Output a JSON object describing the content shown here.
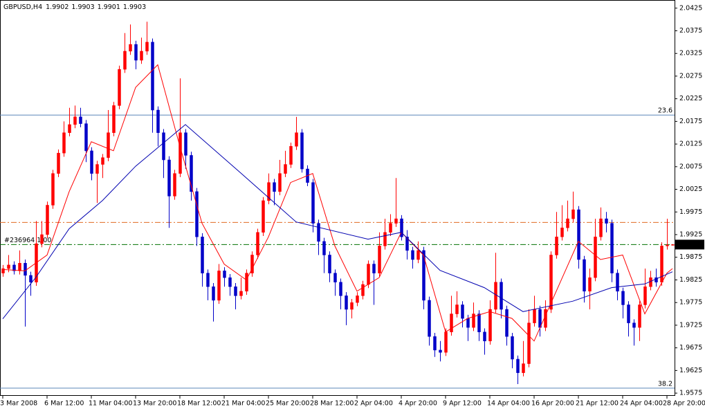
{
  "chart_data": {
    "type": "candlestick",
    "symbol": "GBPUSD,H4",
    "ylim": [
      1.9569,
      2.0443
    ],
    "xlim": [
      -0.5,
      121.375
    ],
    "yticks": [
      1.9575,
      1.9625,
      1.9675,
      1.9725,
      1.9775,
      1.9825,
      1.9875,
      1.9925,
      1.9975,
      2.0025,
      2.0075,
      2.0125,
      2.0175,
      2.0225,
      2.0275,
      2.0325,
      2.0375,
      2.0425
    ],
    "xticks": [
      {
        "value": 0,
        "label": "3 Mar 2008"
      },
      {
        "value": 8,
        "label": "6 Mar 12:00"
      },
      {
        "value": 16,
        "label": "11 Mar 04:00"
      },
      {
        "value": 24,
        "label": "13 Mar 20:00"
      },
      {
        "value": 32,
        "label": "18 Mar 12:00"
      },
      {
        "value": 40,
        "label": "21 Mar 04:00"
      },
      {
        "value": 48,
        "label": "25 Mar 20:00"
      },
      {
        "value": 56,
        "label": "28 Mar 12:00"
      },
      {
        "value": 64,
        "label": "2 Apr 04:00"
      },
      {
        "value": 72,
        "label": "4 Apr 20:00"
      },
      {
        "value": 80,
        "label": "9 Apr 12:00"
      },
      {
        "value": 88,
        "label": "14 Apr 04:00"
      },
      {
        "value": 96,
        "label": "16 Apr 20:00"
      },
      {
        "value": 104,
        "label": "21 Apr 12:00"
      },
      {
        "value": 112,
        "label": "24 Apr 04:00"
      },
      {
        "value": 120,
        "label": "28 Apr 20:00"
      }
    ],
    "up_color": "#ff0000",
    "down_color": "#0000c8",
    "open": [
      1.984,
      1.985,
      1.9858,
      1.9845,
      1.9862,
      1.9835,
      1.982,
      1.9905,
      1.9925,
      1.999,
      2.006,
      2.0105,
      2.015,
      2.0168,
      2.0185,
      2.017,
      2.011,
      2.006,
      2.008,
      2.0095,
      2.015,
      2.021,
      2.029,
      2.033,
      2.0345,
      2.031,
      2.033,
      2.035,
      2.02,
      2.015,
      2.009,
      2.001,
      2.006,
      2.015,
      2.01,
      2.002,
      1.992,
      1.984,
      1.981,
      1.978,
      1.9845,
      1.983,
      1.981,
      1.979,
      1.98,
      1.984,
      1.988,
      1.993,
      2.0,
      2.004,
      2.002,
      2.006,
      2.008,
      2.012,
      2.015,
      2.007,
      2.004,
      1.995,
      1.991,
      1.988,
      1.984,
      1.982,
      1.979,
      1.976,
      1.9775,
      1.979,
      1.9815,
      1.986,
      1.984,
      1.99,
      1.993,
      1.995,
      1.996,
      1.992,
      1.989,
      1.987,
      1.989,
      1.978,
      1.97,
      1.967,
      1.9665,
      1.971,
      1.975,
      1.977,
      1.974,
      1.972,
      1.975,
      1.971,
      1.969,
      1.976,
      1.982,
      1.976,
      1.97,
      1.965,
      1.962,
      1.964,
      1.973,
      1.976,
      1.972,
      1.976,
      1.988,
      1.992,
      1.994,
      1.996,
      1.998,
      1.987,
      1.98,
      1.983,
      1.992,
      1.996,
      1.995,
      1.984,
      1.98,
      1.977,
      1.973,
      1.972,
      1.977,
      1.981,
      1.983,
      1.982,
      1.99,
      1.9902
    ],
    "high": [
      1.9858,
      1.988,
      1.9866,
      1.989,
      1.987,
      1.9843,
      1.9955,
      1.9955,
      1.9998,
      2.0068,
      2.0113,
      2.0175,
      2.0205,
      2.021,
      2.0205,
      2.0178,
      2.0118,
      2.0088,
      2.0103,
      2.02,
      2.0218,
      2.0298,
      2.037,
      2.0389,
      2.0353,
      2.036,
      2.0395,
      2.0358,
      2.0208,
      2.0158,
      2.0098,
      2.0068,
      2.027,
      2.0158,
      2.0108,
      2.0028,
      1.9928,
      1.9848,
      1.9818,
      1.986,
      1.9853,
      1.9838,
      1.9818,
      1.983,
      1.9848,
      1.9888,
      1.9938,
      2.0008,
      2.006,
      2.0048,
      2.009,
      2.011,
      2.0128,
      2.0185,
      2.0158,
      2.0078,
      2.0048,
      1.9958,
      1.9918,
      1.9888,
      1.9848,
      1.9828,
      1.9798,
      1.9783,
      1.9798,
      1.9823,
      1.9868,
      1.9868,
      1.993,
      1.996,
      1.997,
      2.005,
      1.9968,
      1.9935,
      1.9898,
      1.991,
      1.9898,
      1.9788,
      1.9708,
      1.969,
      1.9718,
      1.979,
      1.98,
      1.9778,
      1.9748,
      1.9775,
      1.9758,
      1.9718,
      1.978,
      1.9885,
      1.9828,
      1.9768,
      1.9708,
      1.9658,
      1.969,
      1.976,
      1.979,
      1.9768,
      1.978,
      1.9888,
      1.9975,
      1.999,
      2.0,
      2.002,
      1.9988,
      1.9878,
      1.985,
      1.996,
      1.9985,
      1.9975,
      1.9958,
      1.9848,
      1.9808,
      1.9778,
      1.9738,
      1.9778,
      1.985,
      1.9845,
      1.985,
      1.9908,
      1.996,
      1.9903
    ],
    "low": [
      1.9832,
      1.9842,
      1.9837,
      1.9837,
      1.9722,
      1.979,
      1.9812,
      1.9897,
      1.9917,
      1.9982,
      2.0052,
      2.0097,
      2.0142,
      2.016,
      2.0162,
      2.0085,
      2.0045,
      1.9995,
      2.005,
      2.0087,
      2.0142,
      2.0202,
      2.0282,
      2.0322,
      2.029,
      2.0302,
      2.0322,
      2.015,
      2.012,
      2.005,
      1.994,
      2.0002,
      2.0052,
      2.007,
      2.0,
      1.99,
      1.981,
      1.978,
      1.9733,
      1.9772,
      1.981,
      1.979,
      1.976,
      1.9782,
      1.9792,
      1.9832,
      1.9872,
      1.9922,
      1.9992,
      1.999,
      2.0012,
      2.0052,
      2.0072,
      2.0112,
      2.0062,
      2.0032,
      1.993,
      1.988,
      1.984,
      1.982,
      1.979,
      1.976,
      1.9725,
      1.974,
      1.9767,
      1.9782,
      1.9807,
      1.977,
      1.9832,
      1.9892,
      1.9922,
      1.9942,
      1.9912,
      1.987,
      1.985,
      1.9862,
      1.976,
      1.968,
      1.9655,
      1.9645,
      1.9657,
      1.9702,
      1.9742,
      1.972,
      1.969,
      1.9712,
      1.969,
      1.966,
      1.9682,
      1.9752,
      1.974,
      1.968,
      1.963,
      1.9595,
      1.9612,
      1.9632,
      1.9722,
      1.97,
      1.9712,
      1.9752,
      1.9872,
      1.9912,
      1.9932,
      1.9952,
      1.985,
      1.9775,
      1.976,
      1.9822,
      1.9912,
      1.993,
      1.982,
      1.978,
      1.974,
      1.97,
      1.968,
      1.969,
      1.9762,
      1.9802,
      1.981,
      1.9812,
      1.9892,
      1.9901
    ],
    "close": [
      1.985,
      1.9858,
      1.9845,
      1.9862,
      1.9835,
      1.982,
      1.9905,
      1.9925,
      1.999,
      2.006,
      2.0105,
      2.015,
      2.0168,
      2.0185,
      2.017,
      2.011,
      2.006,
      2.008,
      2.0095,
      2.015,
      2.021,
      2.029,
      2.033,
      2.0345,
      2.031,
      2.033,
      2.035,
      2.02,
      2.015,
      2.009,
      2.001,
      2.006,
      2.015,
      2.01,
      2.002,
      1.992,
      1.984,
      1.981,
      1.978,
      1.9845,
      1.983,
      1.981,
      1.979,
      1.98,
      1.984,
      1.988,
      1.993,
      2.0,
      2.004,
      2.002,
      2.006,
      2.008,
      2.012,
      2.015,
      2.007,
      2.004,
      1.995,
      1.991,
      1.988,
      1.984,
      1.982,
      1.979,
      1.976,
      1.9775,
      1.979,
      1.9815,
      1.986,
      1.984,
      1.99,
      1.993,
      1.995,
      1.996,
      1.992,
      1.989,
      1.987,
      1.989,
      1.978,
      1.97,
      1.967,
      1.9665,
      1.971,
      1.975,
      1.977,
      1.974,
      1.972,
      1.975,
      1.971,
      1.969,
      1.976,
      1.982,
      1.976,
      1.97,
      1.965,
      1.962,
      1.964,
      1.973,
      1.976,
      1.972,
      1.976,
      1.988,
      1.992,
      1.994,
      1.996,
      1.998,
      1.987,
      1.98,
      1.983,
      1.992,
      1.996,
      1.995,
      1.984,
      1.98,
      1.977,
      1.973,
      1.972,
      1.977,
      1.981,
      1.983,
      1.982,
      1.99,
      1.9902,
      1.9903
    ],
    "series": [
      {
        "color": "#ff0000",
        "x": [
          0,
          4,
          8,
          12,
          16,
          20,
          24,
          28,
          32,
          36,
          40,
          44,
          48,
          52,
          56,
          60,
          64,
          68,
          72,
          76,
          80,
          84,
          88,
          92,
          96,
          100,
          104,
          108,
          112,
          116,
          120,
          121
        ],
        "values": [
          1.9848,
          1.9845,
          1.988,
          2.002,
          2.013,
          2.011,
          2.025,
          2.03,
          2.012,
          1.995,
          1.986,
          1.9825,
          1.992,
          2.004,
          2.006,
          1.99,
          1.98,
          1.983,
          1.993,
          1.988,
          1.971,
          1.974,
          1.9755,
          1.974,
          1.969,
          1.98,
          1.991,
          1.987,
          1.988,
          1.975,
          1.984,
          1.985
        ]
      },
      {
        "color": "#0000b0",
        "x": [
          0,
          6,
          12,
          18,
          24,
          33,
          43,
          53,
          66,
          72,
          79,
          87,
          94,
          103,
          110,
          116,
          121
        ],
        "values": [
          1.9739,
          1.9831,
          1.9938,
          2.0,
          2.0076,
          2.0168,
          2.0061,
          1.9953,
          1.9915,
          1.993,
          1.9846,
          1.9808,
          1.9755,
          1.9778,
          1.9808,
          1.9816,
          1.9843
        ]
      }
    ],
    "fib_levels": [
      {
        "label": "23.6",
        "value": 2.0189,
        "color": "#5b86b8"
      },
      {
        "label": "38.2",
        "value": 1.9586,
        "color": "#5b86b8"
      }
    ],
    "levels": [
      {
        "value": 1.9952,
        "color": "#e06a20"
      }
    ],
    "order": {
      "label": "#236964 1.00",
      "value": 1.9903,
      "color": "#007000"
    }
  }
}
